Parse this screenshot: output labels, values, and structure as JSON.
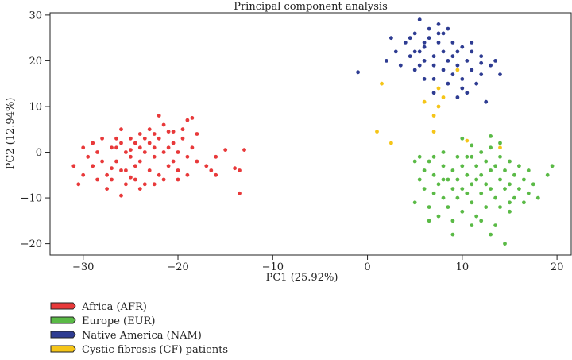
{
  "chart_data": {
    "type": "scatter",
    "title": "Principal component analysis",
    "xlabel": "PC1 (25.92%)",
    "ylabel": "PC2 (12.94%)",
    "xlim": [
      -33.5,
      21.5
    ],
    "ylim": [
      -22.5,
      30.5
    ],
    "xticks": [
      -30,
      -20,
      -10,
      0,
      10,
      20
    ],
    "yticks": [
      -20,
      -10,
      0,
      10,
      20,
      30
    ],
    "grid": false,
    "legend_position": "bottom-left, outside plot",
    "series": [
      {
        "name": "Africa (AFR)",
        "color": "#e8393a",
        "points": [
          [
            -31,
            -3
          ],
          [
            -30.5,
            -7
          ],
          [
            -30,
            -5
          ],
          [
            -30,
            1
          ],
          [
            -29.5,
            -1
          ],
          [
            -29,
            2
          ],
          [
            -29,
            -3
          ],
          [
            -28.5,
            0
          ],
          [
            -28,
            -2
          ],
          [
            -28,
            3
          ],
          [
            -27.5,
            -5
          ],
          [
            -27.5,
            -8
          ],
          [
            -27,
            1
          ],
          [
            -27,
            -6
          ],
          [
            -26.5,
            3
          ],
          [
            -26.5,
            -2
          ],
          [
            -26.5,
            1
          ],
          [
            -26,
            2
          ],
          [
            -26,
            -4
          ],
          [
            -26,
            -9.5
          ],
          [
            -25.5,
            0
          ],
          [
            -25.5,
            -7
          ],
          [
            -25,
            3
          ],
          [
            -25,
            -1
          ],
          [
            -25,
            0.5
          ],
          [
            -24.5,
            2
          ],
          [
            -24.5,
            -3
          ],
          [
            -24.5,
            -6
          ],
          [
            -24,
            1
          ],
          [
            -24,
            4
          ],
          [
            -24,
            -2
          ],
          [
            -23.5,
            0
          ],
          [
            -23.5,
            -7
          ],
          [
            -23,
            2
          ],
          [
            -23,
            5
          ],
          [
            -23,
            -4
          ],
          [
            -22.5,
            -1
          ],
          [
            -22.5,
            1
          ],
          [
            -22,
            3
          ],
          [
            -22,
            8
          ],
          [
            -22,
            -5
          ],
          [
            -21.5,
            0
          ],
          [
            -21.5,
            6
          ],
          [
            -21,
            -3
          ],
          [
            -21,
            1
          ],
          [
            -21,
            4.5
          ],
          [
            -20.5,
            -2
          ],
          [
            -20.5,
            2
          ],
          [
            -20,
            0
          ],
          [
            -20,
            -6
          ],
          [
            -19.5,
            3
          ],
          [
            -19.5,
            5
          ],
          [
            -19,
            -1
          ],
          [
            -19,
            -5
          ],
          [
            -18.5,
            7.5
          ],
          [
            -18.5,
            1
          ],
          [
            -18,
            -2
          ],
          [
            -18,
            4
          ],
          [
            -17,
            -3
          ],
          [
            -16.5,
            -4
          ],
          [
            -16,
            -5
          ],
          [
            -16,
            -1
          ],
          [
            -15,
            0.5
          ],
          [
            -14,
            -3.5
          ],
          [
            -13.5,
            -9
          ],
          [
            -13.5,
            -4
          ],
          [
            -13,
            0.5
          ],
          [
            -22.5,
            -7
          ],
          [
            -25.5,
            -4
          ],
          [
            -27,
            -3.5
          ],
          [
            -23.5,
            3
          ],
          [
            -20.5,
            4.5
          ],
          [
            -28.5,
            -6
          ],
          [
            -21.5,
            -6
          ],
          [
            -24,
            -8
          ],
          [
            -26,
            5
          ],
          [
            -19,
            7
          ],
          [
            -22.5,
            4
          ],
          [
            -20,
            -4
          ],
          [
            -25,
            -5.5
          ]
        ]
      },
      {
        "name": "Europe (EUR)",
        "color": "#5aba46",
        "points": [
          [
            5,
            -2
          ],
          [
            5,
            -11
          ],
          [
            5.5,
            -6
          ],
          [
            5.5,
            -1
          ],
          [
            6,
            -8
          ],
          [
            6,
            -4
          ],
          [
            6.5,
            -12
          ],
          [
            6.5,
            -2
          ],
          [
            7,
            -9
          ],
          [
            7,
            -5
          ],
          [
            7.5,
            -14
          ],
          [
            7.5,
            -7
          ],
          [
            8,
            0
          ],
          [
            8,
            -3
          ],
          [
            8,
            -10
          ],
          [
            8.5,
            -6
          ],
          [
            8.5,
            -12
          ],
          [
            9,
            -4
          ],
          [
            9,
            -8
          ],
          [
            9,
            -15
          ],
          [
            9.5,
            -1
          ],
          [
            9.5,
            -6
          ],
          [
            9.5,
            -10
          ],
          [
            10,
            -3
          ],
          [
            10,
            -8
          ],
          [
            10,
            -13
          ],
          [
            10,
            3
          ],
          [
            10.5,
            -5
          ],
          [
            10.5,
            -9
          ],
          [
            11,
            -1
          ],
          [
            11,
            -7
          ],
          [
            11,
            -11
          ],
          [
            11.5,
            -3
          ],
          [
            11.5,
            -6
          ],
          [
            11.5,
            -14
          ],
          [
            12,
            0
          ],
          [
            12,
            -5
          ],
          [
            12,
            -9
          ],
          [
            12.5,
            -2
          ],
          [
            12.5,
            -7
          ],
          [
            12.5,
            -12
          ],
          [
            13,
            1
          ],
          [
            13,
            -4
          ],
          [
            13,
            -8
          ],
          [
            13.5,
            -3
          ],
          [
            13.5,
            -10
          ],
          [
            13.5,
            -16
          ],
          [
            14,
            -1
          ],
          [
            14,
            -6
          ],
          [
            14,
            -12
          ],
          [
            14.5,
            -4
          ],
          [
            14.5,
            -8
          ],
          [
            14.5,
            -20
          ],
          [
            15,
            -2
          ],
          [
            15,
            -7
          ],
          [
            15,
            -13
          ],
          [
            15.5,
            -5
          ],
          [
            15.5,
            -10
          ],
          [
            16,
            -3
          ],
          [
            16,
            -8
          ],
          [
            16.5,
            -6
          ],
          [
            16.5,
            -11
          ],
          [
            17,
            -4
          ],
          [
            17,
            -9
          ],
          [
            17.5,
            -7
          ],
          [
            18,
            -10
          ],
          [
            19,
            -5
          ],
          [
            19.5,
            -3
          ],
          [
            9,
            -18
          ],
          [
            11,
            -16
          ],
          [
            13,
            -18
          ],
          [
            6.5,
            -15
          ],
          [
            10.5,
            -1
          ],
          [
            12,
            -15
          ],
          [
            8,
            -6
          ],
          [
            15,
            -11
          ],
          [
            13,
            3.5
          ],
          [
            11,
            1.5
          ],
          [
            7,
            -1
          ],
          [
            14,
            2
          ]
        ]
      },
      {
        "name": "Native America (NAM)",
        "color": "#2e3c92",
        "points": [
          [
            -1,
            17.5
          ],
          [
            2,
            20
          ],
          [
            2.5,
            25
          ],
          [
            3,
            22
          ],
          [
            3.5,
            19
          ],
          [
            4,
            24
          ],
          [
            4.5,
            21
          ],
          [
            5,
            26
          ],
          [
            5,
            18
          ],
          [
            5.5,
            22
          ],
          [
            5.5,
            29
          ],
          [
            6,
            23
          ],
          [
            6,
            20
          ],
          [
            6,
            16
          ],
          [
            6.5,
            25
          ],
          [
            7,
            21
          ],
          [
            7,
            19
          ],
          [
            7,
            13
          ],
          [
            7.5,
            24
          ],
          [
            7.5,
            28
          ],
          [
            8,
            22
          ],
          [
            8,
            18
          ],
          [
            8,
            26
          ],
          [
            8.5,
            20
          ],
          [
            8.5,
            15
          ],
          [
            9,
            24
          ],
          [
            9,
            21
          ],
          [
            9,
            17
          ],
          [
            9.5,
            12
          ],
          [
            9.5,
            19
          ],
          [
            10,
            23
          ],
          [
            10,
            16
          ],
          [
            10.5,
            20
          ],
          [
            10.5,
            13
          ],
          [
            11,
            18
          ],
          [
            11,
            24
          ],
          [
            11.5,
            15
          ],
          [
            12,
            21
          ],
          [
            12,
            17
          ],
          [
            12.5,
            11
          ],
          [
            13,
            19
          ],
          [
            14,
            17
          ],
          [
            13.5,
            20
          ],
          [
            7.5,
            26
          ],
          [
            6.5,
            27
          ],
          [
            5.5,
            19
          ],
          [
            4.5,
            25
          ],
          [
            9.5,
            22
          ],
          [
            8.5,
            27
          ],
          [
            11,
            22
          ],
          [
            7,
            16
          ],
          [
            10,
            14
          ],
          [
            12,
            19.5
          ],
          [
            6,
            24
          ],
          [
            5,
            22
          ]
        ]
      },
      {
        "name": "Cystic fibrosis (CF) patients",
        "color": "#f5c518",
        "points": [
          [
            1,
            4.5
          ],
          [
            1.5,
            15
          ],
          [
            2.5,
            2
          ],
          [
            6,
            11
          ],
          [
            7,
            8
          ],
          [
            7,
            4.5
          ],
          [
            7.5,
            14
          ],
          [
            7.5,
            10
          ],
          [
            8,
            12
          ],
          [
            9.5,
            18
          ],
          [
            10.5,
            2.5
          ],
          [
            14,
            1
          ]
        ]
      }
    ]
  }
}
